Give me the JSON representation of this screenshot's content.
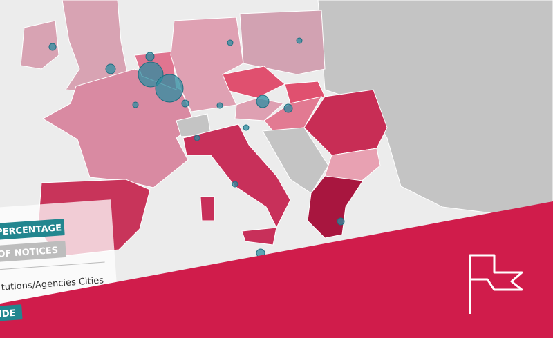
{
  "legend": {
    "buttons": [
      "PERCENTAGE",
      "OF NOTICES"
    ],
    "caption": "tutions/Agencies Cities",
    "bottom_button": "IDE"
  }
}
